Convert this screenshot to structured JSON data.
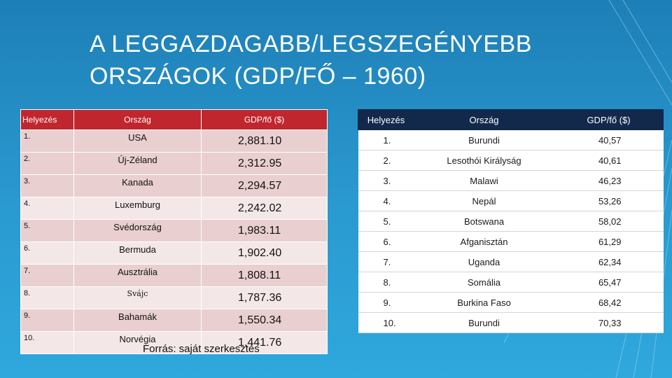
{
  "title": {
    "line1": "A LEGGAZDAGABB/LEGSZEGÉNYEBB",
    "line2": "ORSZÁGOK (GDP/FŐ – 1960)"
  },
  "left_table": {
    "headers": [
      "Helyezés",
      "Ország",
      "GDP/fő ($)"
    ],
    "rows": [
      [
        "1.",
        "USA",
        "2,881.10"
      ],
      [
        "2.",
        "Új-Zéland",
        "2,312.95"
      ],
      [
        "3.",
        "Kanada",
        "2,294.57"
      ],
      [
        "4.",
        "Luxemburg",
        "2,242.02"
      ],
      [
        "5.",
        "Svédország",
        "1,983.11"
      ],
      [
        "6.",
        "Bermuda",
        "1,902.40"
      ],
      [
        "7.",
        "Ausztrália",
        "1,808.11"
      ],
      [
        "8.",
        "Svájc",
        "1,787.36"
      ],
      [
        "9.",
        "Bahamák",
        "1,550.34"
      ],
      [
        "10.",
        "Norvégia",
        "1,441.76"
      ]
    ]
  },
  "right_table": {
    "headers": [
      "Helyezés",
      "Ország",
      "GDP/fő ($)"
    ],
    "rows": [
      [
        "1.",
        "Burundi",
        "40,57"
      ],
      [
        "2.",
        "Lesothói Királyság",
        "40,61"
      ],
      [
        "3.",
        "Malawi",
        "46,23"
      ],
      [
        "4.",
        "Nepál",
        "53,26"
      ],
      [
        "5.",
        "Botswana",
        "58,02"
      ],
      [
        "6.",
        "Afganisztán",
        "61,29"
      ],
      [
        "7.",
        "Uganda",
        "62,34"
      ],
      [
        "8.",
        "Somália",
        "65,47"
      ],
      [
        "9.",
        "Burkina Faso",
        "68,42"
      ],
      [
        "10.",
        "Burundi",
        "70,33"
      ]
    ]
  },
  "source": "Forrás: saját szerkesztés",
  "colors": {
    "background": "#2a9ad0",
    "left_header": "#c0262d",
    "right_header": "#13294b"
  }
}
